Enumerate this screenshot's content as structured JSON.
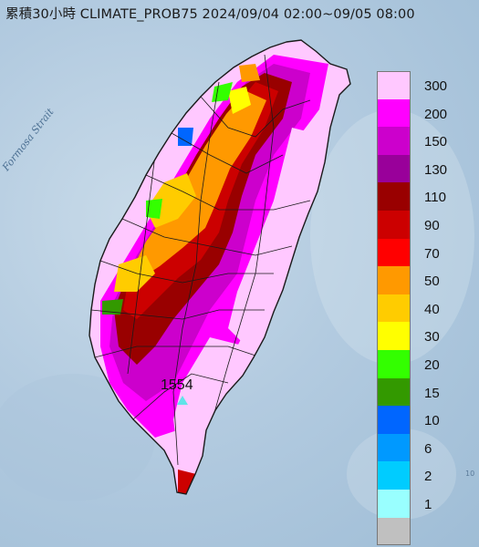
{
  "title": "累積30小時 CLIMATE_PROB75 2024/09/04 02:00~09/05 08:00",
  "strait_label": "Formosa Strait",
  "peak_value": "1554",
  "corner_text": "10",
  "legend": [
    {
      "label": "300",
      "color": "#ffc8ff"
    },
    {
      "label": "200",
      "color": "#ff00ff"
    },
    {
      "label": "150",
      "color": "#cc00cc"
    },
    {
      "label": "130",
      "color": "#99009a"
    },
    {
      "label": "110",
      "color": "#990000"
    },
    {
      "label": "90",
      "color": "#cc0000"
    },
    {
      "label": "70",
      "color": "#ff0000"
    },
    {
      "label": "50",
      "color": "#ff9900"
    },
    {
      "label": "40",
      "color": "#ffcc00"
    },
    {
      "label": "30",
      "color": "#ffff00"
    },
    {
      "label": "20",
      "color": "#33ff00"
    },
    {
      "label": "15",
      "color": "#339900"
    },
    {
      "label": "10",
      "color": "#0066ff"
    },
    {
      "label": "6",
      "color": "#0099ff"
    },
    {
      "label": "2",
      "color": "#00ccff"
    },
    {
      "label": "1",
      "color": "#99ffff"
    },
    {
      "label": "",
      "color": "#c0c0c0"
    }
  ]
}
